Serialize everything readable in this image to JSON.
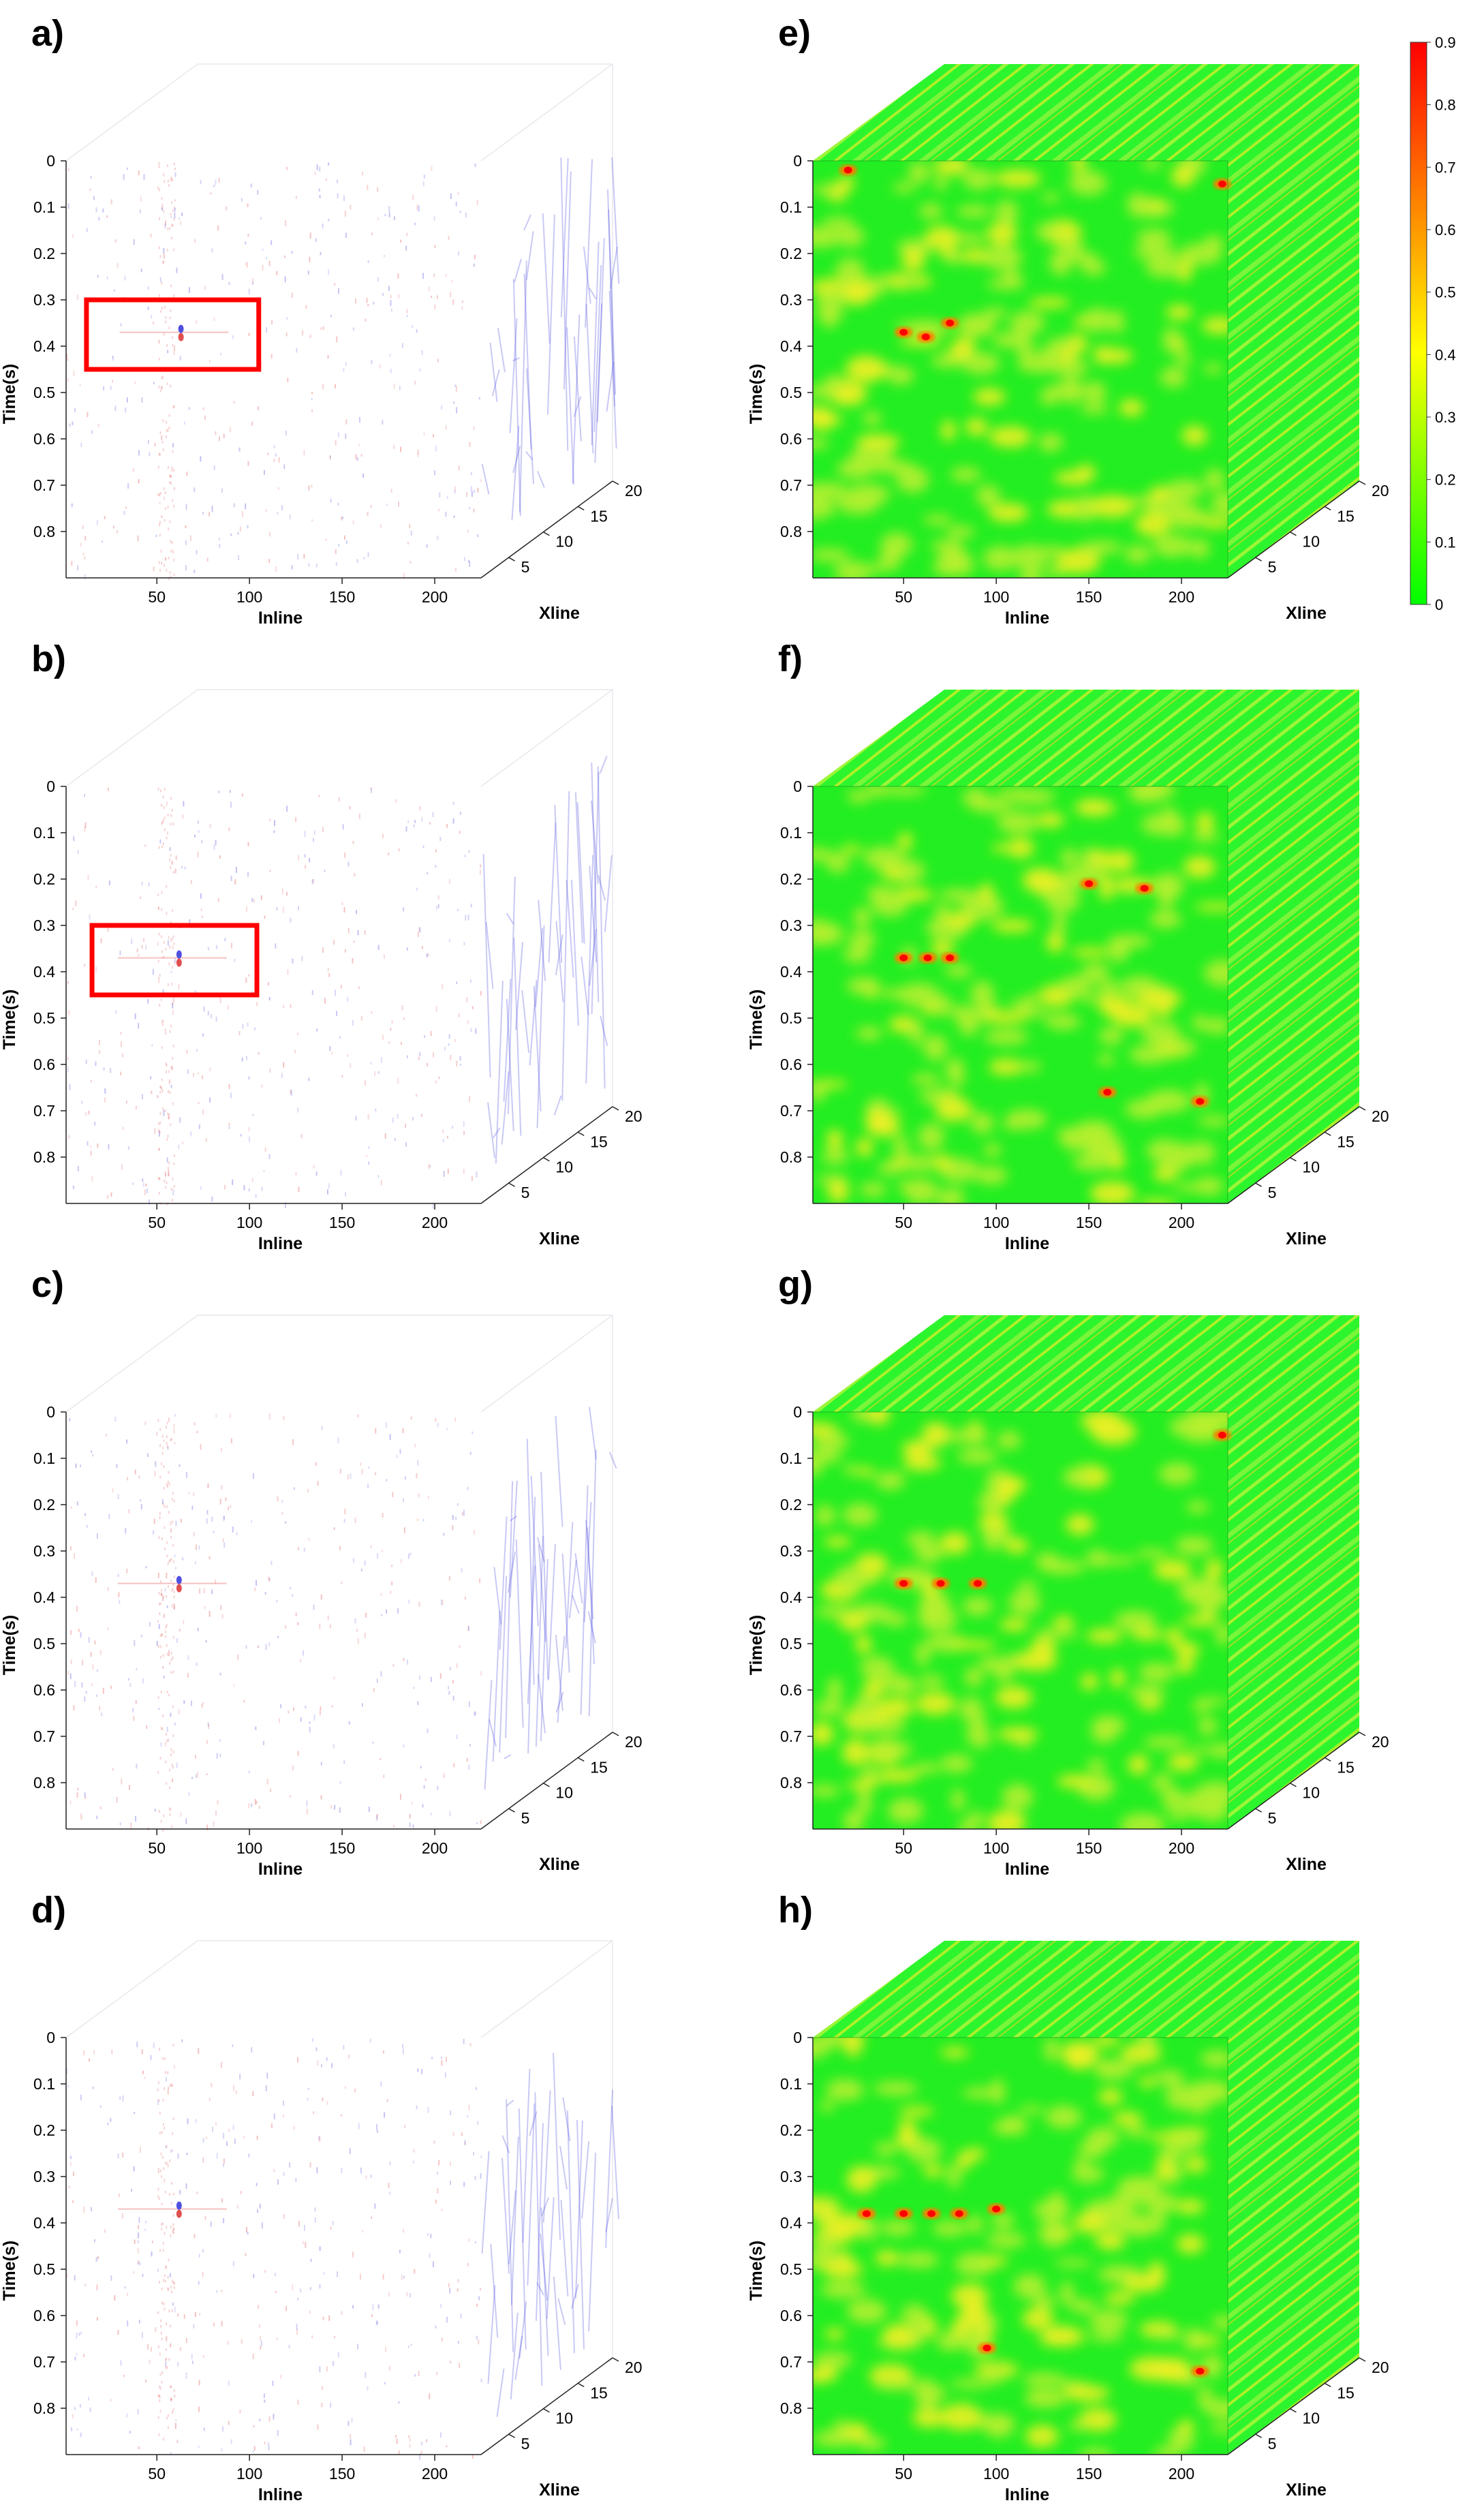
{
  "figure": {
    "panels": [
      {
        "letter": "a)",
        "kind": "seismic"
      },
      {
        "letter": "b)",
        "kind": "seismic"
      },
      {
        "letter": "c)",
        "kind": "seismic"
      },
      {
        "letter": "d)",
        "kind": "seismic"
      },
      {
        "letter": "e)",
        "kind": "attribute"
      },
      {
        "letter": "f)",
        "kind": "attribute"
      },
      {
        "letter": "g)",
        "kind": "attribute"
      },
      {
        "letter": "h)",
        "kind": "attribute"
      }
    ],
    "colorbar": {
      "ticks": [
        "0",
        "0.1",
        "0.2",
        "0.3",
        "0.4",
        "0.5",
        "0.6",
        "0.7",
        "0.8",
        "0.9"
      ],
      "colors": [
        "#00ff00",
        "#ffff00",
        "#ff8000",
        "#ff0000"
      ]
    },
    "seismic_colors": {
      "positive": "#e05050",
      "negative": "#5050e0"
    },
    "highlight_color": "#ff0000"
  },
  "chart_data": [
    {
      "panel": "a)",
      "type": "heatmap",
      "xlabel": "Inline",
      "ylabel": "Time(s)",
      "zlabel": "Xline",
      "xticks": [
        50,
        100,
        150,
        200
      ],
      "yticks": [
        0,
        0.1,
        0.2,
        0.3,
        0.4,
        0.5,
        0.6,
        0.7,
        0.8
      ],
      "zticks": [
        5,
        10,
        15,
        20
      ],
      "xlim": [
        1,
        225
      ],
      "ylim": [
        0,
        0.9
      ],
      "zlim": [
        1,
        20
      ],
      "highlight": {
        "inline": [
          12,
          105
        ],
        "time": [
          0.3,
          0.45
        ]
      },
      "anomalies": [
        {
          "inline": 63,
          "time": 0.37
        }
      ]
    },
    {
      "panel": "b)",
      "type": "heatmap",
      "xlabel": "Inline",
      "ylabel": "Time(s)",
      "zlabel": "Xline",
      "xticks": [
        50,
        100,
        150,
        200
      ],
      "yticks": [
        0,
        0.1,
        0.2,
        0.3,
        0.4,
        0.5,
        0.6,
        0.7,
        0.8
      ],
      "zticks": [
        5,
        10,
        15,
        20
      ],
      "xlim": [
        1,
        225
      ],
      "ylim": [
        0,
        0.9
      ],
      "zlim": [
        1,
        20
      ],
      "highlight": {
        "inline": [
          15,
          104
        ],
        "time": [
          0.3,
          0.45
        ]
      },
      "anomalies": [
        {
          "inline": 62,
          "time": 0.37
        }
      ]
    },
    {
      "panel": "c)",
      "type": "heatmap",
      "xlabel": "Inline",
      "ylabel": "Time(s)",
      "zlabel": "Xline",
      "xticks": [
        50,
        100,
        150,
        200
      ],
      "yticks": [
        0,
        0.1,
        0.2,
        0.3,
        0.4,
        0.5,
        0.6,
        0.7,
        0.8
      ],
      "zticks": [
        5,
        10,
        15,
        20
      ],
      "xlim": [
        1,
        225
      ],
      "ylim": [
        0,
        0.9
      ],
      "zlim": [
        1,
        20
      ],
      "anomalies": [
        {
          "inline": 62,
          "time": 0.37
        }
      ]
    },
    {
      "panel": "d)",
      "type": "heatmap",
      "xlabel": "Inline",
      "ylabel": "Time(s)",
      "zlabel": "Xline",
      "xticks": [
        50,
        100,
        150,
        200
      ],
      "yticks": [
        0,
        0.1,
        0.2,
        0.3,
        0.4,
        0.5,
        0.6,
        0.7,
        0.8
      ],
      "zticks": [
        5,
        10,
        15,
        20
      ],
      "xlim": [
        1,
        225
      ],
      "ylim": [
        0,
        0.9
      ],
      "zlim": [
        1,
        20
      ],
      "anomalies": [
        {
          "inline": 62,
          "time": 0.37
        }
      ]
    },
    {
      "panel": "e)",
      "type": "heatmap",
      "xlabel": "Inline",
      "ylabel": "Time(s)",
      "zlabel": "Xline",
      "xticks": [
        50,
        100,
        150,
        200
      ],
      "yticks": [
        0,
        0.1,
        0.2,
        0.3,
        0.4,
        0.5,
        0.6,
        0.7,
        0.8
      ],
      "zticks": [
        5,
        10,
        15,
        20
      ],
      "xlim": [
        1,
        225
      ],
      "ylim": [
        0,
        0.9
      ],
      "zlim": [
        1,
        20
      ],
      "clim": [
        0,
        0.9
      ],
      "hotspots": [
        {
          "inline": 50,
          "time": 0.37
        },
        {
          "inline": 62,
          "time": 0.38
        },
        {
          "inline": 75,
          "time": 0.35
        },
        {
          "inline": 20,
          "time": 0.02
        },
        {
          "inline": 222,
          "time": 0.05
        }
      ]
    },
    {
      "panel": "f)",
      "type": "heatmap",
      "xlabel": "Inline",
      "ylabel": "Time(s)",
      "zlabel": "Xline",
      "xticks": [
        50,
        100,
        150,
        200
      ],
      "yticks": [
        0,
        0.1,
        0.2,
        0.3,
        0.4,
        0.5,
        0.6,
        0.7,
        0.8
      ],
      "zticks": [
        5,
        10,
        15,
        20
      ],
      "xlim": [
        1,
        225
      ],
      "ylim": [
        0,
        0.9
      ],
      "zlim": [
        1,
        20
      ],
      "clim": [
        0,
        0.9
      ],
      "hotspots": [
        {
          "inline": 50,
          "time": 0.37
        },
        {
          "inline": 63,
          "time": 0.37
        },
        {
          "inline": 75,
          "time": 0.37
        },
        {
          "inline": 150,
          "time": 0.21
        },
        {
          "inline": 180,
          "time": 0.22
        },
        {
          "inline": 210,
          "time": 0.68
        },
        {
          "inline": 160,
          "time": 0.66
        }
      ]
    },
    {
      "panel": "g)",
      "type": "heatmap",
      "xlabel": "Inline",
      "ylabel": "Time(s)",
      "zlabel": "Xline",
      "xticks": [
        50,
        100,
        150,
        200
      ],
      "yticks": [
        0,
        0.1,
        0.2,
        0.3,
        0.4,
        0.5,
        0.6,
        0.7,
        0.8
      ],
      "zticks": [
        5,
        10,
        15,
        20
      ],
      "xlim": [
        1,
        225
      ],
      "ylim": [
        0,
        0.9
      ],
      "zlim": [
        1,
        20
      ],
      "clim": [
        0,
        0.9
      ],
      "hotspots": [
        {
          "inline": 50,
          "time": 0.37
        },
        {
          "inline": 70,
          "time": 0.37
        },
        {
          "inline": 90,
          "time": 0.37
        },
        {
          "inline": 222,
          "time": 0.05
        }
      ]
    },
    {
      "panel": "h)",
      "type": "heatmap",
      "xlabel": "Inline",
      "ylabel": "Time(s)",
      "zlabel": "Xline",
      "xticks": [
        50,
        100,
        150,
        200
      ],
      "yticks": [
        0,
        0.1,
        0.2,
        0.3,
        0.4,
        0.5,
        0.6,
        0.7,
        0.8
      ],
      "zticks": [
        5,
        10,
        15,
        20
      ],
      "xlim": [
        1,
        225
      ],
      "ylim": [
        0,
        0.9
      ],
      "zlim": [
        1,
        20
      ],
      "clim": [
        0,
        0.9
      ],
      "hotspots": [
        {
          "inline": 30,
          "time": 0.38
        },
        {
          "inline": 50,
          "time": 0.38
        },
        {
          "inline": 65,
          "time": 0.38
        },
        {
          "inline": 80,
          "time": 0.38
        },
        {
          "inline": 100,
          "time": 0.37
        },
        {
          "inline": 95,
          "time": 0.67
        },
        {
          "inline": 210,
          "time": 0.72
        }
      ]
    }
  ]
}
